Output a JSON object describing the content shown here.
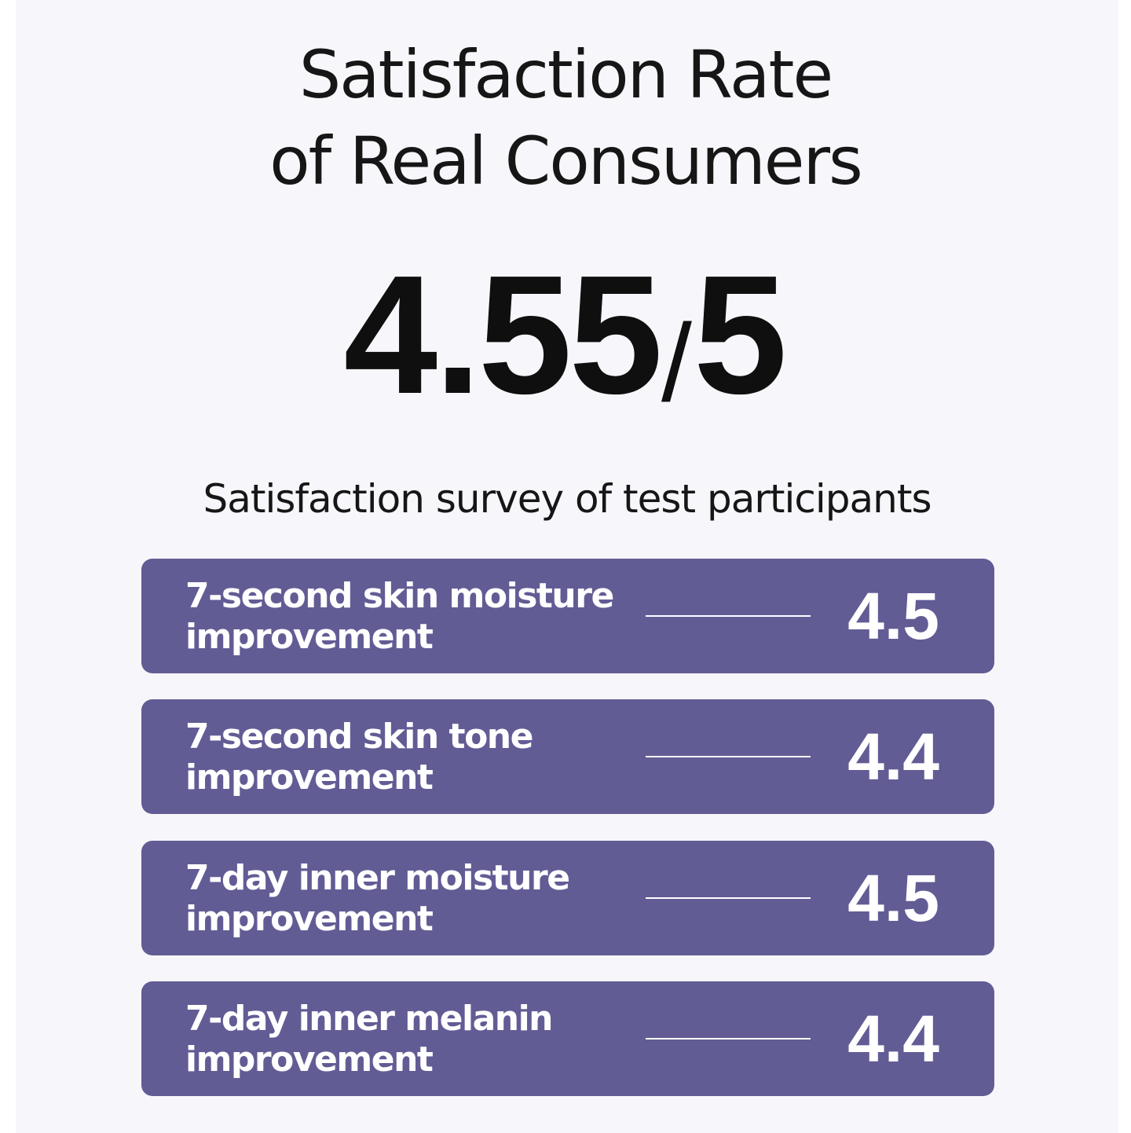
{
  "heading": {
    "line1": "Satisfaction Rate",
    "line2": "of Real Consumers"
  },
  "overall_score": {
    "value": "4.55",
    "separator": "/",
    "max": "5"
  },
  "survey_title": "Satisfaction survey of test participants",
  "items": [
    {
      "label": "7-second skin moisture improvement",
      "score": "4.5"
    },
    {
      "label": "7-second skin tone improvement",
      "score": "4.4"
    },
    {
      "label": "7-day inner moisture improvement",
      "score": "4.5"
    },
    {
      "label": "7-day inner melanin improvement",
      "score": "4.4"
    }
  ],
  "colors": {
    "card_background": "#625c95",
    "page_background": "#f7f6fa",
    "text_dark": "#161616"
  }
}
